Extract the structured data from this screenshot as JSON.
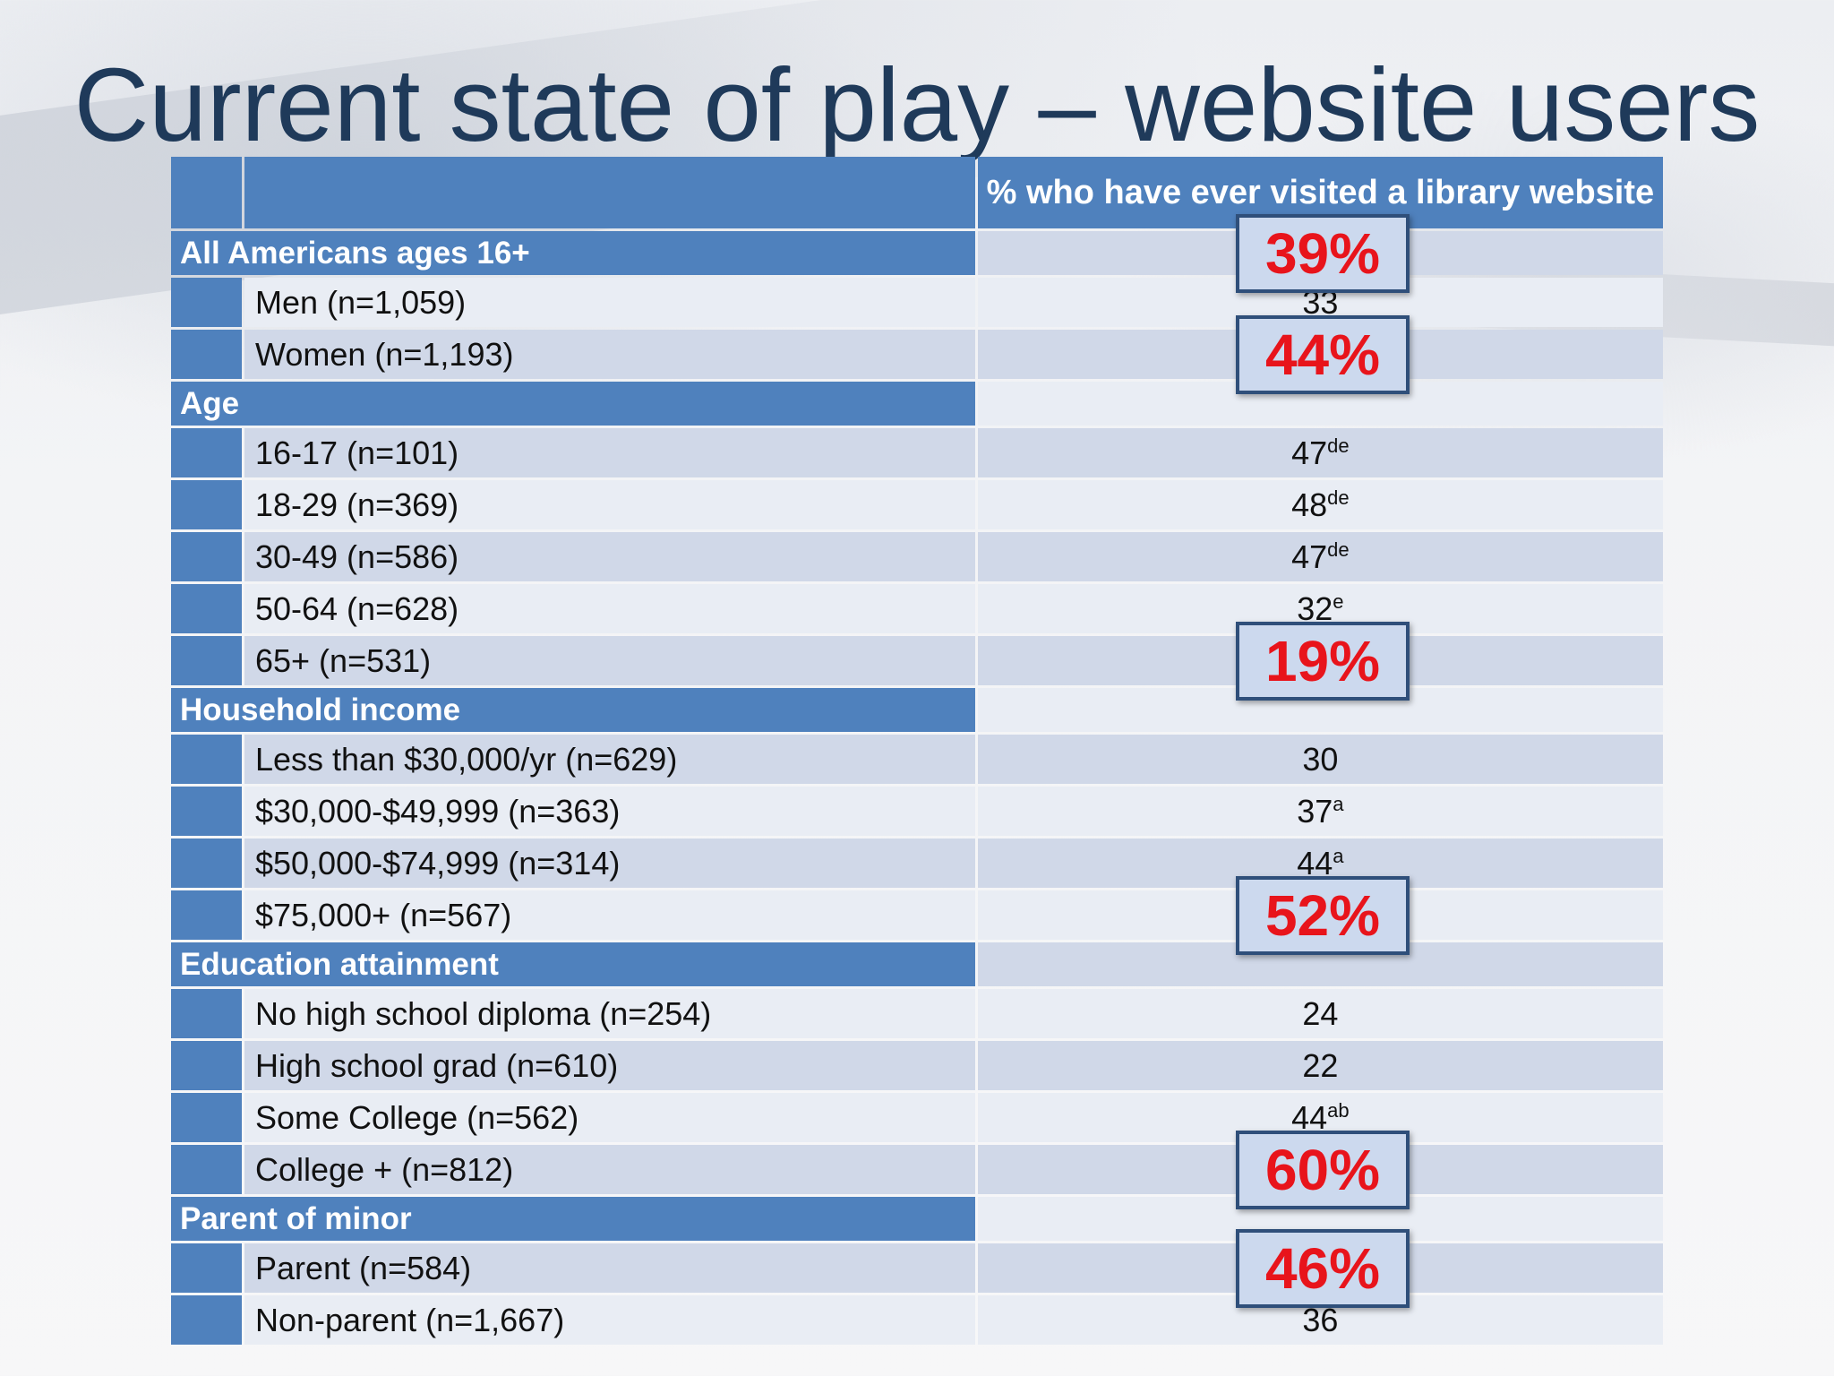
{
  "slide": {
    "title": "Current state of play – website users",
    "column_header": "% who have ever visited a library website"
  },
  "rows": [
    {
      "type": "group",
      "label": "All Americans ages 16+",
      "value": ""
    },
    {
      "type": "sub",
      "label": "Men (n=1,059)",
      "value": "33",
      "sup": ""
    },
    {
      "type": "sub",
      "label": "Women (n=1,193)",
      "value": "",
      "sup": ""
    },
    {
      "type": "group",
      "label": "Age",
      "value": ""
    },
    {
      "type": "sub",
      "label": "16-17 (n=101)",
      "value": "47",
      "sup": "de"
    },
    {
      "type": "sub",
      "label": "18-29 (n=369)",
      "value": "48",
      "sup": "de"
    },
    {
      "type": "sub",
      "label": "30-49 (n=586)",
      "value": "47",
      "sup": "de"
    },
    {
      "type": "sub",
      "label": "50-64 (n=628)",
      "value": "32",
      "sup": "e"
    },
    {
      "type": "sub",
      "label": "65+ (n=531)",
      "value": "",
      "sup": ""
    },
    {
      "type": "group",
      "label": "Household income",
      "value": ""
    },
    {
      "type": "sub",
      "label": "Less than $30,000/yr (n=629)",
      "value": "30",
      "sup": ""
    },
    {
      "type": "sub",
      "label": "$30,000-$49,999 (n=363)",
      "value": "37",
      "sup": "a"
    },
    {
      "type": "sub",
      "label": "$50,000-$74,999 (n=314)",
      "value": "44",
      "sup": "a"
    },
    {
      "type": "sub",
      "label": "$75,000+ (n=567)",
      "value": "",
      "sup": ""
    },
    {
      "type": "group",
      "label": "Education attainment",
      "value": ""
    },
    {
      "type": "sub",
      "label": "No high school diploma (n=254)",
      "value": "24",
      "sup": ""
    },
    {
      "type": "sub",
      "label": "High school grad (n=610)",
      "value": "22",
      "sup": ""
    },
    {
      "type": "sub",
      "label": "Some College (n=562)",
      "value": "44",
      "sup": "ab"
    },
    {
      "type": "sub",
      "label": "College + (n=812)",
      "value": "",
      "sup": ""
    },
    {
      "type": "group",
      "label": "Parent of minor",
      "value": ""
    },
    {
      "type": "sub",
      "label": "Parent (n=584)",
      "value": "",
      "sup": ""
    },
    {
      "type": "sub",
      "label": "Non-parent (n=1,667)",
      "value": "36",
      "sup": ""
    }
  ],
  "highlights": [
    {
      "row": 0,
      "text": "39%"
    },
    {
      "row": 2,
      "text": "44%"
    },
    {
      "row": 8,
      "text": "19%"
    },
    {
      "row": 13,
      "text": "52%"
    },
    {
      "row": 18,
      "text": "60%"
    },
    {
      "row": 20,
      "text": "46%"
    }
  ],
  "colors": {
    "header_blue": "#4f81bd",
    "highlight_red": "#e8141b",
    "title": "#1f3a5a"
  }
}
